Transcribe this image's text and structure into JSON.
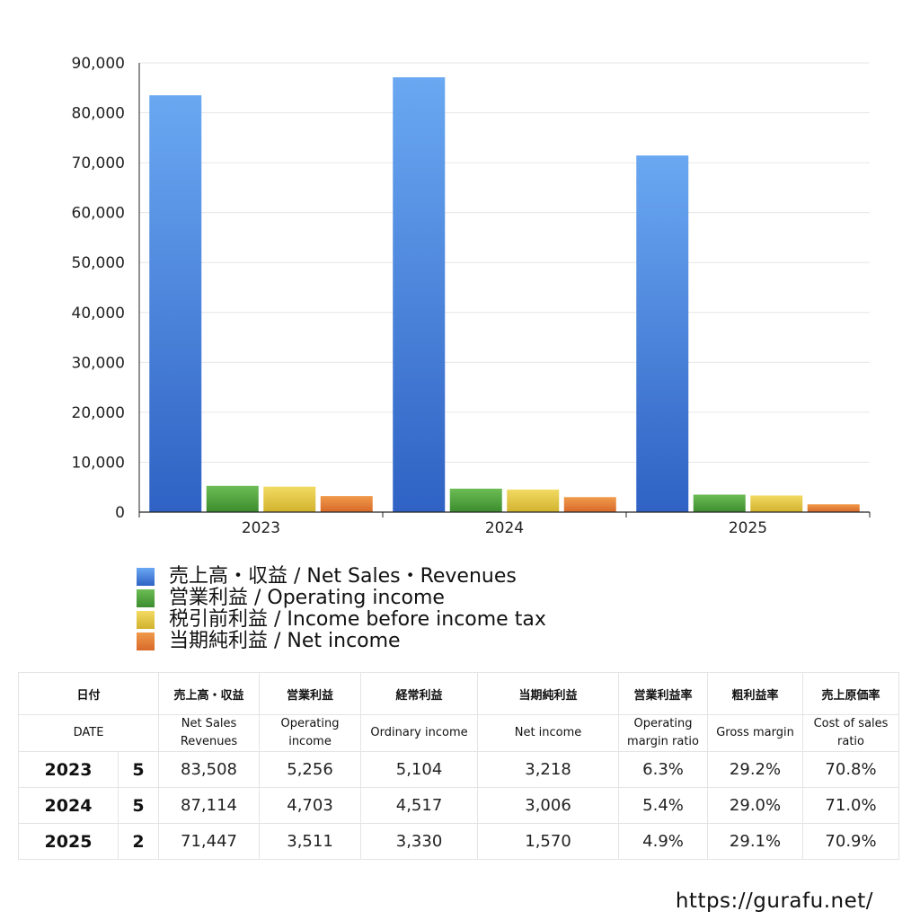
{
  "chart_data": {
    "type": "bar",
    "categories": [
      "2023",
      "2024",
      "2025"
    ],
    "ylim": [
      0,
      90000
    ],
    "yticks": [
      "0",
      "10,000",
      "20,000",
      "30,000",
      "40,000",
      "50,000",
      "60,000",
      "70,000",
      "80,000",
      "90,000"
    ],
    "grid": true,
    "legend_position": "bottom",
    "series": [
      {
        "name": "売上高・収益 / Net Sales・Revenues",
        "values": [
          83508,
          87114,
          71447
        ],
        "color_top": "#6aa8f2",
        "color_bottom": "#2f62c4"
      },
      {
        "name": "営業利益 / Operating income",
        "values": [
          5256,
          4703,
          3511
        ],
        "color_top": "#6cbd55",
        "color_bottom": "#3c8c2e"
      },
      {
        "name": "税引前利益 / Income before income tax",
        "values": [
          5104,
          4517,
          3330
        ],
        "color_top": "#f2da62",
        "color_bottom": "#d2b22e"
      },
      {
        "name": "当期純利益 / Net income",
        "values": [
          3218,
          3006,
          1570
        ],
        "color_top": "#f09a4a",
        "color_bottom": "#d8692a"
      }
    ]
  },
  "table": {
    "headers_jp": [
      "日付",
      "売上高・収益",
      "営業利益",
      "経常利益",
      "当期純利益",
      "営業利益率",
      "粗利益率",
      "売上原価率"
    ],
    "headers_en": [
      "DATE",
      "Net Sales Revenues",
      "Operating income",
      "Ordinary income",
      "Net income",
      "Operating margin ratio",
      "Gross margin",
      "Cost of sales ratio"
    ],
    "rows": [
      {
        "year": "2023",
        "months": "5",
        "net_sales": "83,508",
        "operating": "5,256",
        "ordinary": "5,104",
        "net_income": "3,218",
        "op_margin": "6.3%",
        "gross_margin": "29.2%",
        "cost_ratio": "70.8%"
      },
      {
        "year": "2024",
        "months": "5",
        "net_sales": "87,114",
        "operating": "4,703",
        "ordinary": "4,517",
        "net_income": "3,006",
        "op_margin": "5.4%",
        "gross_margin": "29.0%",
        "cost_ratio": "71.0%"
      },
      {
        "year": "2025",
        "months": "2",
        "net_sales": "71,447",
        "operating": "3,511",
        "ordinary": "3,330",
        "net_income": "1,570",
        "op_margin": "4.9%",
        "gross_margin": "29.1%",
        "cost_ratio": "70.9%"
      }
    ]
  },
  "footer": {
    "url": "https://gurafu.net/"
  }
}
